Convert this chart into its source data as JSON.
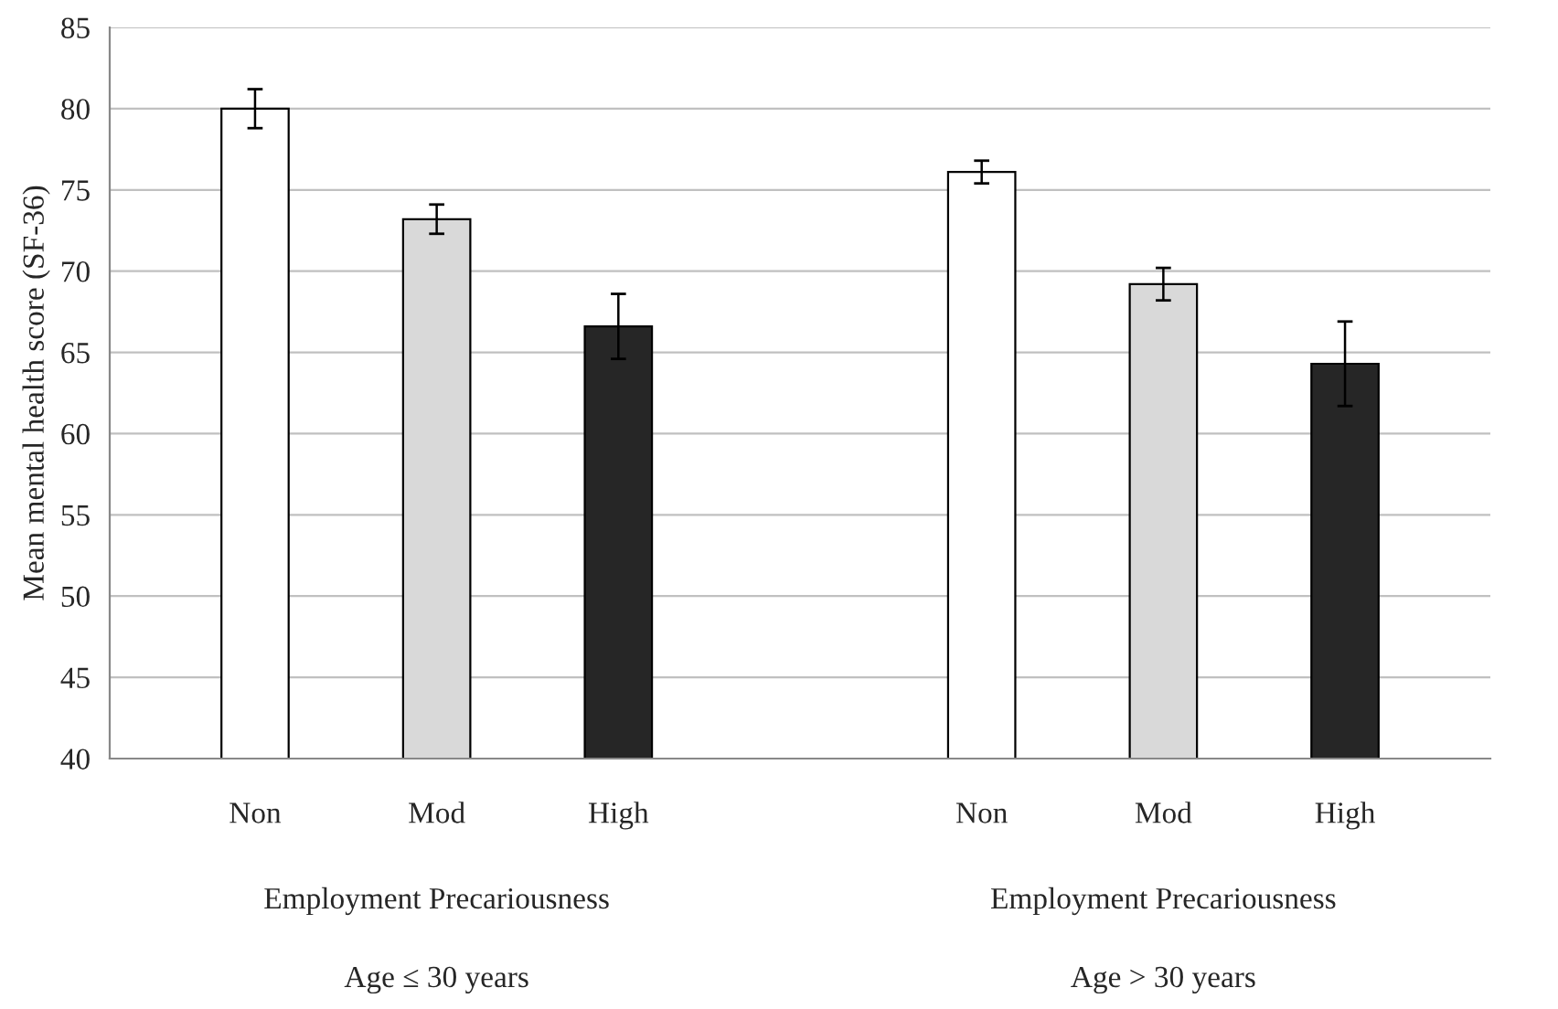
{
  "chart_data": {
    "type": "bar",
    "categories": [
      "Non",
      "Mod",
      "High",
      null,
      "Non",
      "Mod",
      "High"
    ],
    "values": [
      80.0,
      73.2,
      66.6,
      null,
      76.1,
      69.2,
      64.3
    ],
    "errors": [
      1.2,
      0.9,
      2.0,
      null,
      0.7,
      1.0,
      2.6
    ],
    "colors": [
      "#ffffff",
      "#d9d9d9",
      "#262626",
      null,
      "#ffffff",
      "#d9d9d9",
      "#262626"
    ],
    "ylabel": "Mean mental health score (SF-36)",
    "ylim": [
      40,
      85
    ],
    "yticks": [
      40,
      45,
      50,
      55,
      60,
      65,
      70,
      75,
      80,
      85
    ],
    "grid": "y",
    "legend": false,
    "annotations": [
      "Employment Precariousness",
      "Employment Precariousness",
      "Age ≤ 30 years",
      "Age > 30 years"
    ]
  }
}
